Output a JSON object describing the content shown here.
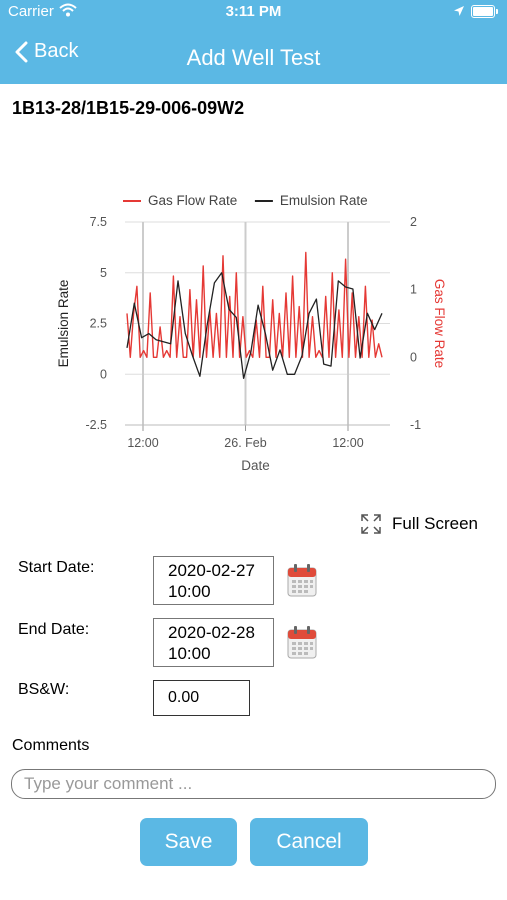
{
  "status_bar": {
    "carrier": "Carrier",
    "time": "3:11 PM"
  },
  "nav": {
    "back_label": "Back",
    "title": "Add Well Test"
  },
  "well_id": "1B13-28/1B15-29-006-09W2",
  "colors": {
    "accent": "#5bb8e4",
    "gas_series": "#e53935",
    "emulsion_series": "#222222"
  },
  "chart_data": {
    "type": "line",
    "title": "",
    "xlabel": "Date",
    "x_ticks": [
      "12:00",
      "26. Feb",
      "12:00"
    ],
    "legend_position": "top",
    "grid": true,
    "y_left": {
      "label": "Emulsion Rate",
      "ticks": [
        "7.5",
        "5",
        "2.5",
        "0",
        "-2.5"
      ],
      "range": [
        -2.5,
        7.5
      ]
    },
    "y_right": {
      "label": "Gas Flow Rate",
      "ticks": [
        "2",
        "1",
        "0",
        "-1"
      ],
      "range": [
        -1,
        2
      ]
    },
    "series": [
      {
        "name": "Gas Flow Rate",
        "axis": "right",
        "color": "#e53935",
        "values": [
          0.65,
          0.0,
          0.65,
          1.05,
          0.0,
          0.1,
          0.0,
          0.95,
          0.0,
          0.0,
          0.45,
          0.0,
          0.1,
          0.0,
          1.2,
          0.0,
          0.6,
          0.0,
          0.0,
          1.0,
          0.0,
          0.85,
          0.0,
          1.35,
          0.0,
          0.7,
          0.0,
          0.65,
          0.0,
          1.5,
          0.0,
          0.9,
          0.0,
          1.25,
          0.0,
          0.6,
          0.0,
          0.1,
          0.0,
          0.55,
          0.0,
          1.05,
          0.0,
          0.0,
          0.85,
          0.0,
          0.65,
          0.0,
          0.95,
          0.0,
          1.2,
          0.0,
          0.75,
          0.0,
          1.55,
          0.0,
          0.6,
          0.0,
          0.1,
          0.0,
          0.9,
          0.0,
          1.25,
          0.0,
          0.7,
          0.0,
          1.45,
          0.0,
          0.95,
          0.0,
          0.6,
          0.0,
          1.05,
          0.0,
          0.55,
          0.0,
          0.2,
          0.0
        ]
      },
      {
        "name": "Emulsion Rate",
        "axis": "left",
        "color": "#222222",
        "values": [
          1.3,
          3.5,
          1.8,
          2.0,
          1.7,
          1.6,
          1.5,
          4.6,
          2.0,
          0.9,
          -0.1,
          2.4,
          4.5,
          5.0,
          3.2,
          2.8,
          -0.2,
          1.1,
          3.4,
          2.0,
          0.2,
          1.2,
          0.0,
          0.0,
          0.9,
          3.0,
          3.7,
          0.5,
          0.4,
          4.6,
          4.3,
          4.2,
          0.8,
          3.0,
          2.2,
          3.0
        ]
      }
    ]
  },
  "fullscreen_label": "Full Screen",
  "form": {
    "start_date_label": "Start Date:",
    "start_date_value": "2020-02-27\n10:00",
    "end_date_label": "End Date:",
    "end_date_value": "2020-02-28\n10:00",
    "bsw_label": "BS&W:",
    "bsw_value": "0.00",
    "comments_label": "Comments",
    "comment_placeholder": "Type your comment ..."
  },
  "buttons": {
    "save": "Save",
    "cancel": "Cancel"
  }
}
